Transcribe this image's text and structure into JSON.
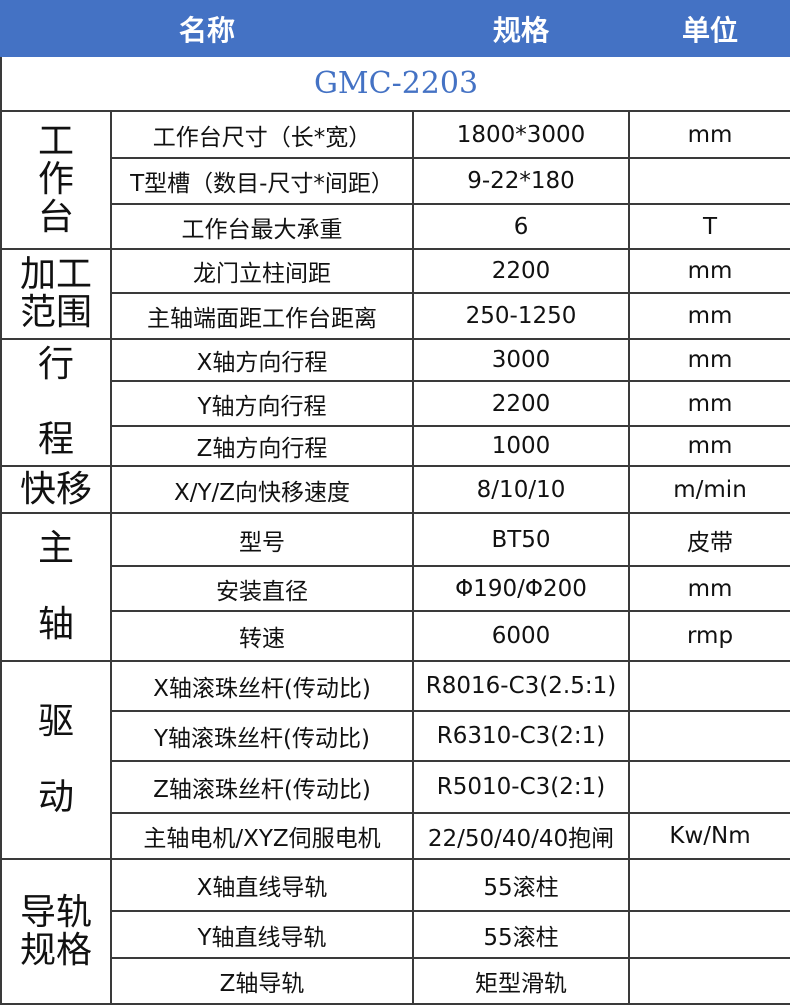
{
  "header": {
    "name": "名称",
    "spec": "规格",
    "unit": "单位",
    "color": "#4472c4"
  },
  "model": "GMC-2203",
  "groups": [
    {
      "label": "工\n作\n台",
      "rows": [
        {
          "name": "工作台尺寸（长*宽）",
          "spec": "1800*3000",
          "unit": "mm"
        },
        {
          "name": "T型槽（数目-尺寸*间距）",
          "spec": "9-22*180",
          "unit": ""
        },
        {
          "name": "工作台最大承重",
          "spec": "6",
          "unit": "T"
        }
      ]
    },
    {
      "label": "加工\n范围",
      "rows": [
        {
          "name": "龙门立柱间距",
          "spec": "2200",
          "unit": "mm"
        },
        {
          "name": "主轴端面距工作台距离",
          "spec": "250-1250",
          "unit": "mm"
        }
      ]
    },
    {
      "label": "行\n\n程",
      "rows": [
        {
          "name": "X轴方向行程",
          "spec": "3000",
          "unit": "mm"
        },
        {
          "name": "Y轴方向行程",
          "spec": "2200",
          "unit": "mm"
        },
        {
          "name": "Z轴方向行程",
          "spec": "1000",
          "unit": "mm"
        }
      ]
    },
    {
      "label": "快移",
      "rows": [
        {
          "name": "X/Y/Z向快移速度",
          "spec": "8/10/10",
          "unit": "m/min"
        }
      ]
    },
    {
      "label": "主\n\n轴",
      "rows": [
        {
          "name": "型号",
          "spec": "BT50",
          "unit": "皮带"
        },
        {
          "name": "安装直径",
          "spec": "Φ190/Φ200",
          "unit": "mm"
        },
        {
          "name": "转速",
          "spec": "6000",
          "unit": "rmp"
        }
      ]
    },
    {
      "label": "驱\n\n动",
      "rows": [
        {
          "name": "X轴滚珠丝杆(传动比)",
          "spec": "R8016-C3(2.5:1)",
          "unit": ""
        },
        {
          "name": "Y轴滚珠丝杆(传动比)",
          "spec": "R6310-C3(2:1)",
          "unit": ""
        },
        {
          "name": "Z轴滚珠丝杆(传动比)",
          "spec": "R5010-C3(2:1)",
          "unit": ""
        },
        {
          "name": "主轴电机/XYZ伺服电机",
          "spec": "22/50/40/40抱闸",
          "unit": "Kw/Nm"
        }
      ]
    },
    {
      "label": "导轨\n规格",
      "rows": [
        {
          "name": "X轴直线导轨",
          "spec": "55滚柱",
          "unit": ""
        },
        {
          "name": "Y轴直线导轨",
          "spec": "55滚柱",
          "unit": ""
        },
        {
          "name": "Z轴导轨",
          "spec": "矩型滑轨",
          "unit": ""
        }
      ]
    }
  ]
}
